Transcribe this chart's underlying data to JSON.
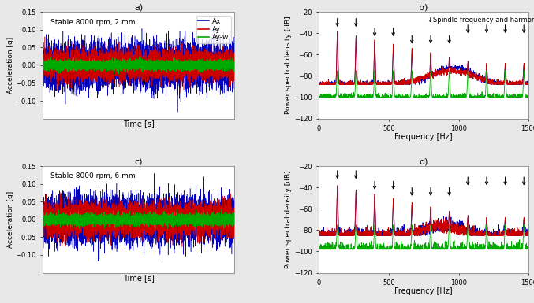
{
  "fig_width": 6.77,
  "fig_height": 3.85,
  "dpi": 100,
  "bg_color": "#e8e8e8",
  "subplot_bg": "#ffffff",
  "time_ylim": [
    -0.15,
    0.15
  ],
  "time_yticks": [
    -0.1,
    -0.05,
    0.0,
    0.05,
    0.1,
    0.15
  ],
  "time_ylabel": "Acceleration [g]",
  "time_xlabel": "Time [s]",
  "psd_ylim": [
    -120,
    -20
  ],
  "psd_yticks": [
    -120,
    -100,
    -80,
    -60,
    -40,
    -20
  ],
  "psd_ylabel": "Power spectral density [dB]",
  "psd_xlabel": "Frequency [Hz]",
  "psd_xlim": [
    0,
    1500
  ],
  "psd_xticks": [
    0,
    500,
    1000,
    1500
  ],
  "label_2mm": "Stable 8000 rpm, 2 mm",
  "label_6mm": "Stable 8000 rpm, 6 mm",
  "spindle_annotation": "↓Spindle frequency and harmonics",
  "colors": {
    "Ax": "#0000bb",
    "Ay": "#cc0000",
    "Ay_w": "#00aa00"
  },
  "legend_labels": [
    "Ax",
    "Ay",
    "Ay-w"
  ],
  "arrow_freqs_b": [
    133,
    266,
    400,
    533,
    666,
    800,
    933,
    1066,
    1200,
    1333,
    1466
  ],
  "arrow_freqs_d": [
    133,
    266,
    400,
    533,
    666,
    800,
    933,
    1066,
    1200,
    1333,
    1466
  ],
  "spindle_freq": 133.3
}
